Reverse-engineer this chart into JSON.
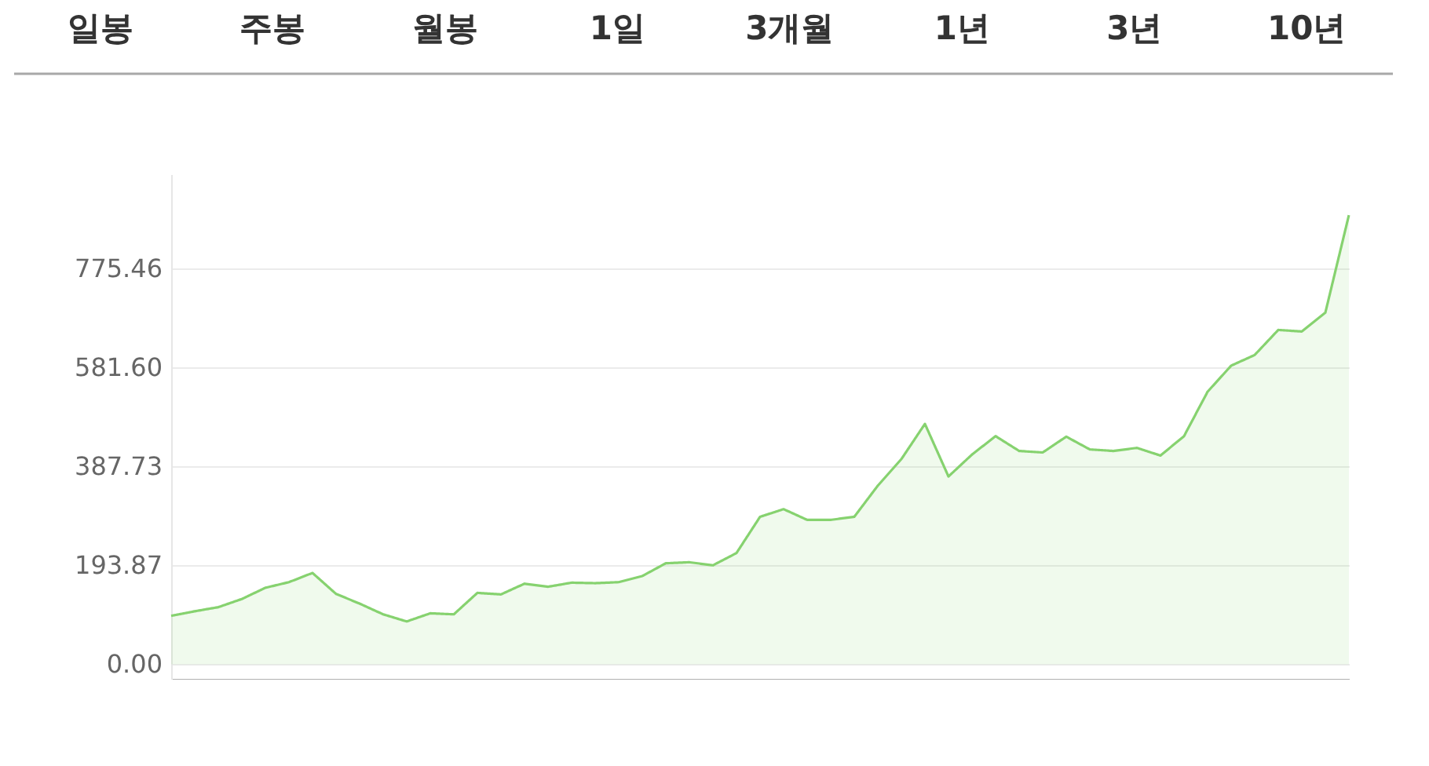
{
  "chart_data": {
    "type": "area",
    "annotations": [
      "일봉",
      "주봉",
      "월봉",
      "1일",
      "3개월",
      "1년",
      "3년",
      "10년"
    ],
    "categories": [
      null,
      null,
      null,
      null,
      null,
      null,
      null,
      null,
      null,
      null,
      null,
      null,
      null,
      null,
      null,
      null,
      null,
      null,
      null,
      null,
      null,
      null,
      null,
      null,
      null,
      null,
      null,
      null,
      null,
      null,
      null,
      null,
      null,
      null,
      null,
      null,
      null,
      null,
      null,
      null,
      null,
      null,
      null,
      null,
      null,
      null,
      null,
      null,
      null,
      null,
      null
    ],
    "series": [
      {
        "color": "#86d26f",
        "values": [
          95,
          104,
          112,
          128,
          150,
          161,
          179,
          138,
          119,
          98,
          84,
          100,
          98,
          140,
          137,
          158,
          152,
          160,
          159,
          161,
          173,
          198,
          200,
          194,
          218,
          289,
          304,
          283,
          283,
          289,
          350,
          402,
          471,
          368,
          411,
          447,
          418,
          415,
          446,
          421,
          418,
          424,
          409,
          447,
          534,
          585,
          606,
          655,
          652,
          689,
          880
        ]
      }
    ],
    "ylim": [
      -30,
      960
    ],
    "yticks": [
      {
        "value": 0,
        "label": "0.00"
      },
      193.87,
      387.73,
      {
        "value": 581.6,
        "label": "581.60"
      },
      775.46
    ],
    "grid": "y",
    "tick_labels": "y",
    "legend": false,
    "marker": "none",
    "line_style": "solid"
  }
}
